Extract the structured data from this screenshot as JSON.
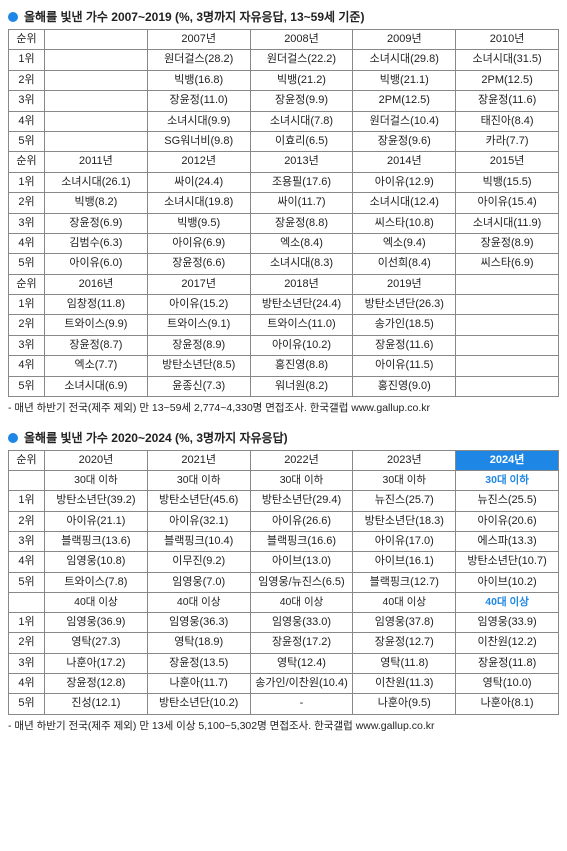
{
  "section1": {
    "title": "올해를 빛낸 가수 2007~2019 (%, 3명까지 자유응답, 13~59세 기준)",
    "rank_label": "순위",
    "ranks": [
      "1위",
      "2위",
      "3위",
      "4위",
      "5위"
    ],
    "years_a": [
      "2007년",
      "2008년",
      "2009년",
      "2010년"
    ],
    "rows_a": [
      [
        "원더걸스(28.2)",
        "원더걸스(22.2)",
        "소녀시대(29.8)",
        "소녀시대(31.5)"
      ],
      [
        "빅뱅(16.8)",
        "빅뱅(21.2)",
        "빅뱅(21.1)",
        "2PM(12.5)"
      ],
      [
        "장윤정(11.0)",
        "장윤정(9.9)",
        "2PM(12.5)",
        "장윤정(11.6)"
      ],
      [
        "소녀시대(9.9)",
        "소녀시대(7.8)",
        "원더걸스(10.4)",
        "태진아(8.4)"
      ],
      [
        "SG워너비(9.8)",
        "이효리(6.5)",
        "장윤정(9.6)",
        "카라(7.7)"
      ]
    ],
    "years_b": [
      "2011년",
      "2012년",
      "2013년",
      "2014년",
      "2015년"
    ],
    "rows_b": [
      [
        "소녀시대(26.1)",
        "싸이(24.4)",
        "조용필(17.6)",
        "아이유(12.9)",
        "빅뱅(15.5)"
      ],
      [
        "빅뱅(8.2)",
        "소녀시대(19.8)",
        "싸이(11.7)",
        "소녀시대(12.4)",
        "아이유(15.4)"
      ],
      [
        "장윤정(6.9)",
        "빅뱅(9.5)",
        "장윤정(8.8)",
        "씨스타(10.8)",
        "소녀시대(11.9)"
      ],
      [
        "김범수(6.3)",
        "아이유(6.9)",
        "엑소(8.4)",
        "엑소(9.4)",
        "장윤정(8.9)"
      ],
      [
        "아이유(6.0)",
        "장윤정(6.6)",
        "소녀시대(8.3)",
        "이선희(8.4)",
        "씨스타(6.9)"
      ]
    ],
    "years_c": [
      "2016년",
      "2017년",
      "2018년",
      "2019년",
      ""
    ],
    "rows_c": [
      [
        "임창정(11.8)",
        "아이유(15.2)",
        "방탄소년단(24.4)",
        "방탄소년단(26.3)",
        ""
      ],
      [
        "트와이스(9.9)",
        "트와이스(9.1)",
        "트와이스(11.0)",
        "송가인(18.5)",
        ""
      ],
      [
        "장윤정(8.7)",
        "장윤정(8.9)",
        "아이유(10.2)",
        "장윤정(11.6)",
        ""
      ],
      [
        "엑소(7.7)",
        "방탄소년단(8.5)",
        "홍진영(8.8)",
        "아이유(11.5)",
        ""
      ],
      [
        "소녀시대(6.9)",
        "윤종신(7.3)",
        "워너원(8.2)",
        "홍진영(9.0)",
        ""
      ]
    ],
    "footnote": "- 매년 하반기 전국(제주 제외) 만 13~59세 2,774~4,330명 면접조사. 한국갤럽 www.gallup.co.kr"
  },
  "section2": {
    "title": "올해를 빛낸 가수 2020~2024 (%, 3명까지 자유응답)",
    "rank_label": "순위",
    "ranks": [
      "1위",
      "2위",
      "3위",
      "4위",
      "5위"
    ],
    "years": [
      "2020년",
      "2021년",
      "2022년",
      "2023년",
      "2024년"
    ],
    "sub_young": "30대 이하",
    "sub_old": "40대 이상",
    "rows_young": [
      [
        "방탄소년단(39.2)",
        "방탄소년단(45.6)",
        "방탄소년단(29.4)",
        "뉴진스(25.7)",
        "뉴진스(25.5)"
      ],
      [
        "아이유(21.1)",
        "아이유(32.1)",
        "아이유(26.6)",
        "방탄소년단(18.3)",
        "아이유(20.6)"
      ],
      [
        "블랙핑크(13.6)",
        "블랙핑크(10.4)",
        "블랙핑크(16.6)",
        "아이유(17.0)",
        "에스파(13.3)"
      ],
      [
        "임영웅(10.8)",
        "이무진(9.2)",
        "아이브(13.0)",
        "아이브(16.1)",
        "방탄소년단(10.7)"
      ],
      [
        "트와이스(7.8)",
        "임영웅(7.0)",
        "임영웅/뉴진스(6.5)",
        "블랙핑크(12.7)",
        "아이브(10.2)"
      ]
    ],
    "rows_old": [
      [
        "임영웅(36.9)",
        "임영웅(36.3)",
        "임영웅(33.0)",
        "임영웅(37.8)",
        "임영웅(33.9)"
      ],
      [
        "영탁(27.3)",
        "영탁(18.9)",
        "장윤정(17.2)",
        "장윤정(12.7)",
        "이찬원(12.2)"
      ],
      [
        "나훈아(17.2)",
        "장윤정(13.5)",
        "영탁(12.4)",
        "영탁(11.8)",
        "장윤정(11.8)"
      ],
      [
        "장윤정(12.8)",
        "나훈아(11.7)",
        "송가인/이찬원(10.4)",
        "이찬원(11.3)",
        "영탁(10.0)"
      ],
      [
        "진성(12.1)",
        "방탄소년단(10.2)",
        "-",
        "나훈아(9.5)",
        "나훈아(8.1)"
      ]
    ],
    "footnote": "- 매년 하반기 전국(제주 제외) 만 13세 이상 5,100~5,302명 면접조사. 한국갤럽 www.gallup.co.kr"
  }
}
